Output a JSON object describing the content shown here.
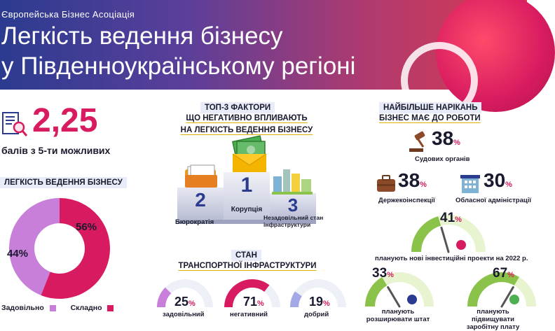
{
  "header": {
    "org": "Європейська Бізнес Асоціація",
    "title_line1": "Легкість ведення бізнесу",
    "title_line2": "у Південноукраїнському регіоні"
  },
  "score": {
    "value": "2,25",
    "caption": "балів з 5-ти можливих",
    "icon": "document-magnifier-icon"
  },
  "ease_section": {
    "label": "ЛЕГКІСТЬ ВЕДЕННЯ БІЗНЕСУ"
  },
  "top3": {
    "heading1": "ТОП-3 ФАКТОРИ",
    "heading2": "ЩО НЕГАТИВНО ВПЛИВАЮТЬ",
    "heading3": "НА ЛЕГКІСТЬ ВЕДЕННЯ БІЗНЕСУ",
    "places": [
      {
        "rank": "1",
        "label": "Корупція",
        "icon": "money-envelope-icon"
      },
      {
        "rank": "2",
        "label": "Бюрократія",
        "icon": "document-stack-icon"
      },
      {
        "rank": "3",
        "label": "Незадовільний стан інфраструктури",
        "icon": "city-buildings-icon"
      }
    ]
  },
  "transport": {
    "heading1": "СТАН",
    "heading2": "ТРАНСПОРТНОЇ ІНФРАСТРУКТУРИ",
    "gauges": [
      {
        "value": "25",
        "unit": "%",
        "label": "задовільний",
        "color": "#c77fd9"
      },
      {
        "value": "71",
        "unit": "%",
        "label": "негативний",
        "color": "#d81b60"
      },
      {
        "value": "19",
        "unit": "%",
        "label": "добрий",
        "color": "#a3a8e6"
      }
    ]
  },
  "complaints": {
    "heading1": "НАЙБІЛЬШЕ НАРІКАНЬ",
    "heading2": "БІЗНЕС МАЄ ДО РОБОТИ",
    "items": [
      {
        "value": "38",
        "unit": "%",
        "label": "Судових органів",
        "icon": "gavel-icon"
      },
      {
        "value": "38",
        "unit": "%",
        "label": "Держекоінспекції",
        "icon": "suitcase-icon"
      },
      {
        "value": "30",
        "unit": "%",
        "label": "Обласної адміністрації",
        "icon": "building-icon"
      }
    ]
  },
  "plans": [
    {
      "value": "41",
      "unit": "%",
      "label": "планують нові інвестиційні проекти на 2022 р.",
      "icon": "plant-icon"
    },
    {
      "value": "33",
      "unit": "%",
      "label": "планують розширювати штат",
      "icon": "people-icon"
    },
    {
      "value": "67",
      "unit": "%",
      "label": "планують підвищувати заробітну плату",
      "icon": "money-stack-icon"
    }
  ],
  "chart_data": {
    "type": "pie",
    "categories": [
      "Задовільно",
      "Складно"
    ],
    "values": [
      44,
      56
    ],
    "labels": [
      "44%",
      "56%"
    ],
    "colors": [
      "#c77fd9",
      "#d81b60"
    ],
    "legend": "bottom"
  }
}
